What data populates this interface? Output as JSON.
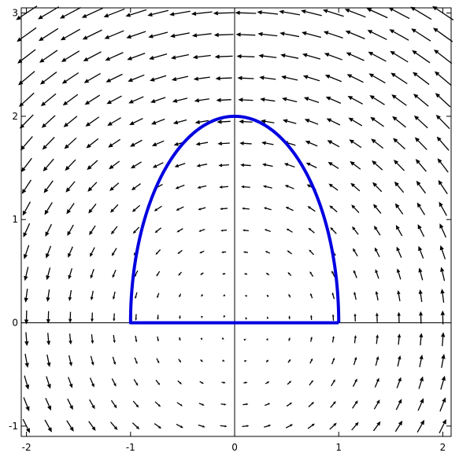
{
  "chart_data": {
    "type": "vector-field",
    "title": "",
    "xlabel": "",
    "ylabel": "",
    "xlim": [
      -2.05,
      2.08
    ],
    "ylim": [
      -1.1,
      3.05
    ],
    "x_ticks": [
      {
        "value": -2,
        "label": "-2"
      },
      {
        "value": -1,
        "label": "-1"
      },
      {
        "value": 0,
        "label": "0"
      },
      {
        "value": 1,
        "label": "1"
      },
      {
        "value": 2,
        "label": "2"
      }
    ],
    "y_ticks": [
      {
        "value": -1,
        "label": "-1"
      },
      {
        "value": 0,
        "label": "0"
      },
      {
        "value": 1,
        "label": "1"
      },
      {
        "value": 2,
        "label": "2"
      },
      {
        "value": 3,
        "label": "3"
      }
    ],
    "vector_field": {
      "formula": "F(x, y) = (-y, x) on the grid below",
      "x_range": [
        -2,
        2
      ],
      "y_range": [
        -1,
        3
      ],
      "grid_points": 20,
      "color": "#000000"
    },
    "curve": {
      "description": "closed curve: semi-ellipse x^2 + y^2/4 = 1 for y >= 0, closed by the segment from (-1,0) to (1,0)",
      "arc": {
        "center": [
          0,
          0
        ],
        "semi_axis_x": 1,
        "semi_axis_y": 2,
        "y_min": 0
      },
      "base_segment": [
        [
          -1,
          0
        ],
        [
          1,
          0
        ]
      ],
      "color": "#0000e0"
    }
  }
}
